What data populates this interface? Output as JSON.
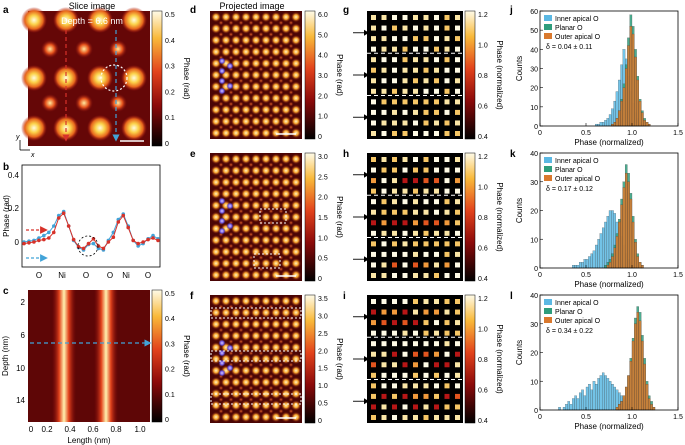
{
  "panels": {
    "a": {
      "letter": "a",
      "title": "Slice image",
      "depth_label": "Depth  = 6.6  nm",
      "colorbar": {
        "ticks": [
          "0.5",
          "0.4",
          "0.3",
          "0.2",
          "0.1",
          "0"
        ],
        "label": "Phase (rad)"
      },
      "axis_y": "y",
      "axis_x": "x"
    },
    "b": {
      "letter": "b",
      "ylabel": "Phase (rad)",
      "yticks": [
        "0.4",
        "0.2",
        "0"
      ],
      "xticks": [
        "O",
        "Ni",
        "O",
        "O",
        "Ni",
        "O"
      ],
      "red_series": [
        -0.02,
        -0.01,
        0.0,
        0.02,
        0.03,
        0.05,
        0.12,
        0.3,
        0.36,
        0.2,
        0.03,
        -0.06,
        -0.08,
        -0.02,
        0.04,
        -0.05,
        -0.08,
        0.0,
        0.06,
        0.25,
        0.33,
        0.18,
        0.02,
        -0.02,
        0.0,
        0.03,
        0.05,
        0.02
      ],
      "blue_series": [
        0.0,
        0.01,
        0.02,
        0.05,
        0.08,
        0.12,
        0.2,
        0.33,
        0.38,
        0.2,
        0.02,
        -0.07,
        -0.1,
        -0.03,
        -0.02,
        -0.08,
        -0.1,
        0.02,
        0.12,
        0.28,
        0.35,
        0.2,
        0.02,
        -0.05,
        -0.02,
        0.04,
        0.08,
        0.04
      ]
    },
    "c": {
      "letter": "c",
      "ylabel": "Depth (nm)",
      "xlabel": "Length (nm)",
      "yticks": [
        "2",
        "6",
        "10",
        "14"
      ],
      "xticks": [
        "0",
        "0.2",
        "0.4",
        "0.6",
        "0.8",
        "1.0"
      ],
      "colorbar": {
        "ticks": [
          "0.5",
          "0.4",
          "0.3",
          "0.2",
          "0.1",
          "0"
        ],
        "label": "Phase (rad)"
      }
    },
    "d": {
      "letter": "d",
      "title": "Projected image",
      "colorbar": {
        "ticks": [
          "6.0",
          "5.0",
          "4.0",
          "3.0",
          "2.0",
          "1.0",
          "0"
        ],
        "label": "Phase (rad)"
      }
    },
    "e": {
      "letter": "e",
      "colorbar": {
        "ticks": [
          "3.0",
          "2.5",
          "2.0",
          "1.5",
          "1.0",
          "0.5",
          "0"
        ],
        "label": "Phase (rad)"
      }
    },
    "f": {
      "letter": "f",
      "colorbar": {
        "ticks": [
          "3.5",
          "3.0",
          "2.5",
          "2.0",
          "1.5",
          "1.0",
          "0.5",
          "0"
        ],
        "label": "Phase (rad)"
      }
    },
    "g": {
      "letter": "g",
      "colorbar": {
        "ticks": [
          "1.2",
          "1.0",
          "0.8",
          "0.6",
          "0.4"
        ],
        "label": "Phase (normalized)"
      }
    },
    "h": {
      "letter": "h",
      "colorbar": {
        "ticks": [
          "1.2",
          "1.0",
          "0.8",
          "0.6",
          "0.4"
        ],
        "label": "Phase (normalized)"
      }
    },
    "i": {
      "letter": "i",
      "colorbar": {
        "ticks": [
          "1.2",
          "1.0",
          "0.8",
          "0.6",
          "0.4"
        ],
        "label": "Phase (normalized)"
      }
    }
  },
  "chart_data": [
    {
      "panel": "j",
      "type": "bar",
      "title": "",
      "xlabel": "Phase (normalized)",
      "ylabel": "Counts",
      "xlim": [
        0,
        1.5
      ],
      "ylim": [
        0,
        60
      ],
      "xticks": [
        "0",
        "0.5",
        "1.0",
        "1.5"
      ],
      "yticks": [
        "0",
        "10",
        "20",
        "30",
        "40",
        "50",
        "60"
      ],
      "legend": [
        "Inner apical O",
        "Planar O",
        "Outer apical O"
      ],
      "annotation": "δ = 0.04 ± 0.11",
      "bin_start": 0.6,
      "bin_width": 0.025,
      "series": [
        {
          "name": "Inner apical O",
          "values": [
            1,
            1,
            2,
            2,
            3,
            4,
            6,
            9,
            13,
            18,
            24,
            32,
            40,
            35,
            26,
            18,
            12,
            7,
            4,
            2,
            1,
            0,
            0,
            0,
            0,
            0,
            0,
            0,
            0,
            0,
            0,
            0
          ]
        },
        {
          "name": "Planar O",
          "values": [
            0,
            0,
            0,
            0,
            0,
            0,
            0,
            1,
            2,
            4,
            8,
            14,
            22,
            32,
            46,
            58,
            52,
            40,
            26,
            14,
            8,
            4,
            2,
            1,
            0,
            0,
            0,
            0,
            0,
            0,
            0,
            0
          ]
        },
        {
          "name": "Outer apical O",
          "values": [
            0,
            0,
            0,
            0,
            0,
            0,
            0,
            1,
            2,
            4,
            8,
            13,
            20,
            30,
            42,
            52,
            48,
            36,
            24,
            13,
            7,
            3,
            2,
            1,
            0,
            0,
            0,
            0,
            0,
            0,
            0,
            0
          ]
        }
      ]
    },
    {
      "panel": "k",
      "type": "bar",
      "title": "",
      "xlabel": "Phase (normalized)",
      "ylabel": "Counts",
      "xlim": [
        0,
        1.5
      ],
      "ylim": [
        0,
        40
      ],
      "xticks": [
        "0",
        "0.5",
        "1.0",
        "1.5"
      ],
      "yticks": [
        "0",
        "10",
        "20",
        "30",
        "40"
      ],
      "legend": [
        "Inner apical O",
        "Planar O",
        "Outer apical O"
      ],
      "annotation": "δ = 0.17 ± 0.12",
      "bin_start": 0.35,
      "bin_width": 0.025,
      "series": [
        {
          "name": "Inner apical O",
          "values": [
            1,
            1,
            1,
            2,
            2,
            3,
            3,
            4,
            5,
            6,
            8,
            10,
            12,
            14,
            16,
            18,
            20,
            20,
            19,
            16,
            14,
            11,
            8,
            5,
            3,
            2,
            1,
            0,
            0,
            0,
            0,
            0,
            0,
            0,
            0,
            0,
            0,
            0,
            0,
            0,
            0,
            0,
            0,
            0
          ]
        },
        {
          "name": "Planar O",
          "values": [
            0,
            0,
            0,
            0,
            0,
            0,
            0,
            0,
            0,
            0,
            0,
            0,
            0,
            0,
            1,
            2,
            3,
            5,
            8,
            12,
            17,
            24,
            30,
            36,
            33,
            26,
            18,
            10,
            5,
            2,
            1,
            0,
            0,
            0,
            0,
            0,
            0,
            0,
            0,
            0,
            0,
            0,
            0,
            0
          ]
        },
        {
          "name": "Outer apical O",
          "values": [
            0,
            0,
            0,
            0,
            0,
            0,
            0,
            0,
            0,
            0,
            0,
            0,
            0,
            0,
            0,
            1,
            2,
            4,
            7,
            11,
            16,
            22,
            28,
            33,
            30,
            24,
            16,
            9,
            4,
            2,
            1,
            0,
            0,
            0,
            0,
            0,
            0,
            0,
            0,
            0,
            0,
            0,
            0,
            0
          ]
        }
      ]
    },
    {
      "panel": "l",
      "type": "bar",
      "title": "",
      "xlabel": "Phase (normalized)",
      "ylabel": "Counts",
      "xlim": [
        0,
        1.5
      ],
      "ylim": [
        0,
        40
      ],
      "xticks": [
        "0",
        "0.5",
        "1.0",
        "1.5"
      ],
      "yticks": [
        "0",
        "10",
        "20",
        "30",
        "40"
      ],
      "legend": [
        "Inner apical O",
        "Planar O",
        "Outer apical O"
      ],
      "annotation": "δ = 0.34 ± 0.22",
      "bin_start": 0.2,
      "bin_width": 0.025,
      "series": [
        {
          "name": "Inner apical O",
          "values": [
            1,
            0,
            1,
            2,
            3,
            2,
            4,
            5,
            4,
            6,
            7,
            5,
            8,
            9,
            7,
            10,
            9,
            11,
            12,
            13,
            12,
            11,
            10,
            9,
            8,
            7,
            6,
            5,
            4,
            3,
            2,
            1,
            0,
            0,
            0,
            0,
            0,
            0,
            0,
            0,
            0,
            0,
            0,
            0,
            0,
            0,
            0,
            0,
            0,
            0,
            0,
            0
          ]
        },
        {
          "name": "Planar O",
          "values": [
            0,
            0,
            0,
            0,
            0,
            0,
            0,
            0,
            0,
            0,
            0,
            0,
            0,
            0,
            0,
            0,
            0,
            0,
            0,
            0,
            0,
            0,
            0,
            0,
            0,
            1,
            2,
            3,
            5,
            8,
            12,
            18,
            25,
            32,
            36,
            34,
            26,
            18,
            10,
            5,
            3,
            1,
            0,
            0,
            0,
            0,
            0,
            0,
            0,
            0,
            0,
            0
          ]
        },
        {
          "name": "Outer apical O",
          "values": [
            0,
            0,
            0,
            0,
            0,
            0,
            0,
            0,
            0,
            0,
            0,
            0,
            0,
            0,
            0,
            0,
            0,
            0,
            0,
            0,
            0,
            0,
            0,
            0,
            0,
            1,
            2,
            3,
            5,
            8,
            12,
            17,
            24,
            30,
            34,
            31,
            24,
            16,
            9,
            4,
            2,
            1,
            0,
            0,
            0,
            0,
            0,
            0,
            0,
            0,
            0,
            0
          ]
        }
      ]
    }
  ],
  "colors": {
    "inner": "#5bb8e3",
    "planar": "#2e9d7c",
    "outer": "#d9782d",
    "red_curve": "#d7322a",
    "blue_curve": "#42a3d8"
  }
}
